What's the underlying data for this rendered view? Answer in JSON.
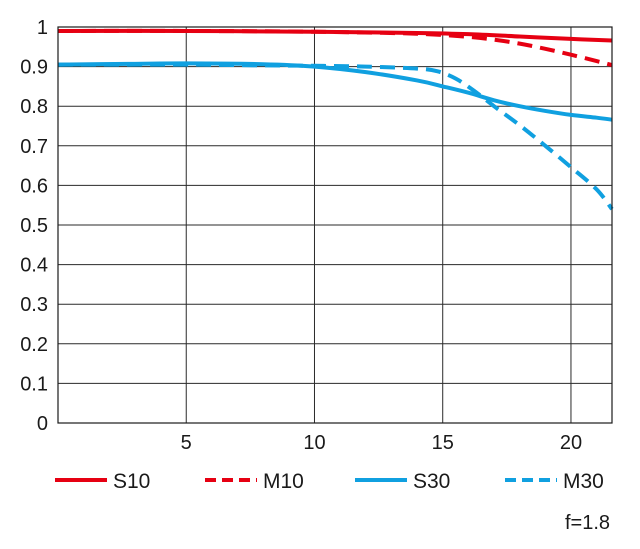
{
  "chart_data": {
    "type": "line",
    "title": "",
    "xlabel": "",
    "ylabel": "",
    "xlim": [
      0,
      21.6
    ],
    "ylim": [
      0,
      1
    ],
    "x_ticks": [
      5,
      10,
      15,
      20
    ],
    "y_ticks": [
      0,
      0.1,
      0.2,
      0.3,
      0.4,
      0.5,
      0.6,
      0.7,
      0.8,
      0.9,
      1
    ],
    "x_tick_labels": [
      "5",
      "10",
      "15",
      "20"
    ],
    "y_tick_labels": [
      "0",
      "0.1",
      "0.2",
      "0.3",
      "0.4",
      "0.5",
      "0.6",
      "0.7",
      "0.8",
      "0.9",
      "1"
    ],
    "grid": true,
    "legend_position": "bottom",
    "series": [
      {
        "name": "S10",
        "color": "#e60012",
        "dash": "solid",
        "x": [
          0,
          5,
          10,
          14,
          16,
          18,
          20,
          21.6
        ],
        "y": [
          0.99,
          0.99,
          0.988,
          0.985,
          0.982,
          0.976,
          0.97,
          0.966
        ]
      },
      {
        "name": "M10",
        "color": "#e60012",
        "dash": "dashed",
        "x": [
          0,
          5,
          10,
          14,
          16,
          17,
          18,
          19,
          20,
          21,
          21.6
        ],
        "y": [
          0.99,
          0.99,
          0.988,
          0.983,
          0.975,
          0.968,
          0.958,
          0.945,
          0.93,
          0.914,
          0.904
        ]
      },
      {
        "name": "S30",
        "color": "#10a0e0",
        "dash": "solid",
        "x": [
          0,
          3,
          5,
          8,
          10,
          12,
          14,
          15,
          16,
          17,
          18,
          19,
          20,
          21,
          21.6
        ],
        "y": [
          0.905,
          0.907,
          0.908,
          0.906,
          0.9,
          0.886,
          0.865,
          0.85,
          0.834,
          0.815,
          0.8,
          0.788,
          0.778,
          0.771,
          0.766
        ]
      },
      {
        "name": "M30",
        "color": "#10a0e0",
        "dash": "dashed",
        "x": [
          0,
          5,
          8,
          10,
          12,
          14,
          14.8,
          15.5,
          16.2,
          17,
          18,
          19,
          20,
          21,
          21.6
        ],
        "y": [
          0.905,
          0.905,
          0.903,
          0.902,
          0.9,
          0.895,
          0.888,
          0.87,
          0.84,
          0.8,
          0.752,
          0.7,
          0.646,
          0.59,
          0.54
        ]
      }
    ],
    "annotation": "f=1.8"
  }
}
